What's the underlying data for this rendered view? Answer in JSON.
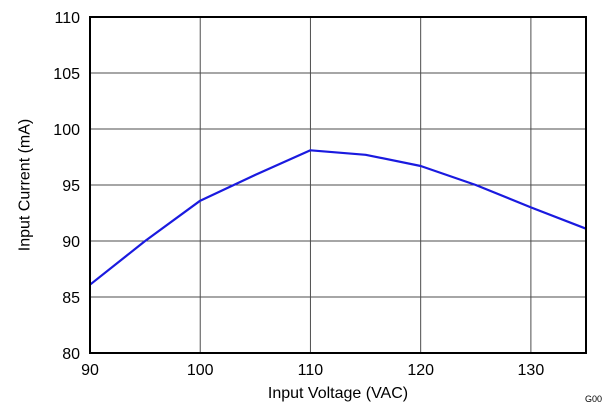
{
  "chart_data": {
    "type": "line",
    "xlabel": "Input Voltage (VAC)",
    "ylabel": "Input Current (mA)",
    "xlim": [
      90,
      135
    ],
    "ylim": [
      80,
      110
    ],
    "xticks": [
      90,
      100,
      110,
      120,
      130
    ],
    "yticks": [
      80,
      85,
      90,
      95,
      100,
      105,
      110
    ],
    "grid": true,
    "series": [
      {
        "color": "#1a1adf",
        "x": [
          90,
          95,
          100,
          105,
          110,
          115,
          120,
          125,
          130,
          135
        ],
        "y": [
          86.1,
          90.0,
          93.6,
          95.9,
          98.1,
          97.7,
          96.7,
          95.0,
          93.0,
          91.1
        ]
      }
    ],
    "figure_code": "G00"
  }
}
